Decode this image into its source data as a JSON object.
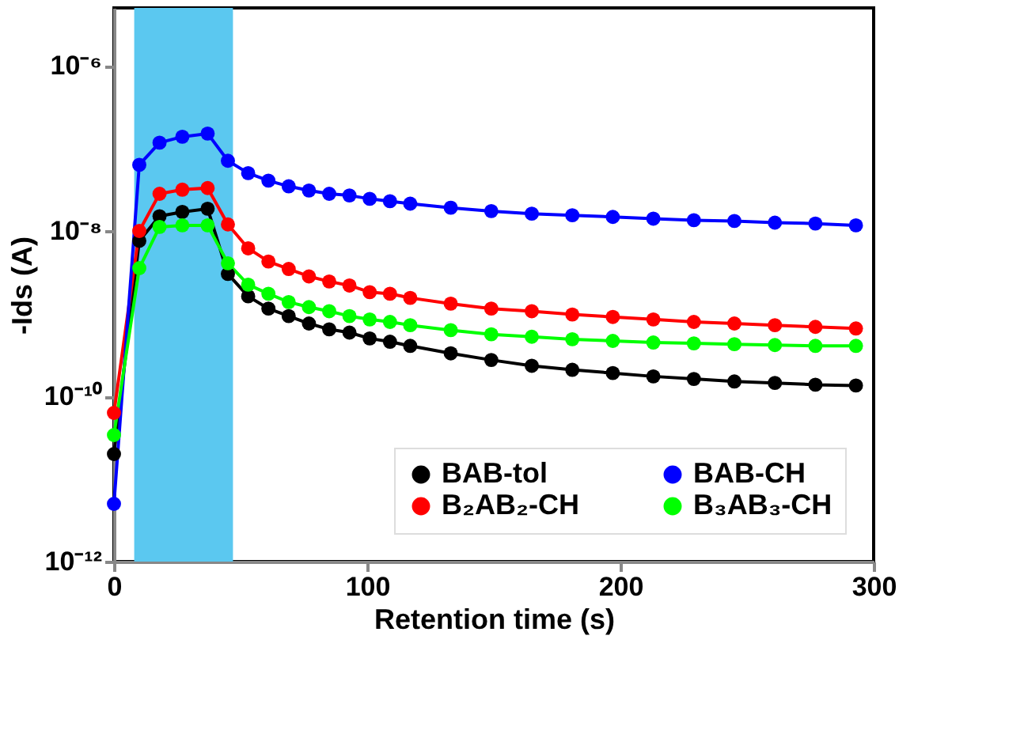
{
  "chart_data": {
    "type": "line",
    "xlabel": "Retention time (s)",
    "ylabel": "-Ids (A)",
    "x": [
      0,
      10,
      18,
      27,
      37,
      45,
      53,
      61,
      69,
      77,
      85,
      93,
      101,
      109,
      117,
      133,
      149,
      165,
      181,
      197,
      213,
      229,
      245,
      261,
      277,
      293
    ],
    "series": [
      {
        "name": "BAB-tol",
        "color": "#000000",
        "values": [
          2e-11,
          7.59e-09,
          1.51e-08,
          1.7e-08,
          1.86e-08,
          3.02e-09,
          1.62e-09,
          1.15e-09,
          9.33e-10,
          7.59e-10,
          6.46e-10,
          5.89e-10,
          5.01e-10,
          4.57e-10,
          4.07e-10,
          3.31e-10,
          2.75e-10,
          2.34e-10,
          2.09e-10,
          1.91e-10,
          1.74e-10,
          1.62e-10,
          1.51e-10,
          1.45e-10,
          1.38e-10,
          1.35e-10
        ]
      },
      {
        "name": "B₂AB₂-CH",
        "color": "#ff0000",
        "values": [
          6.3e-11,
          1e-08,
          2.82e-08,
          3.16e-08,
          3.31e-08,
          1.2e-08,
          6.17e-09,
          4.27e-09,
          3.47e-09,
          2.82e-09,
          2.45e-09,
          2.19e-09,
          1.82e-09,
          1.74e-09,
          1.55e-09,
          1.32e-09,
          1.15e-09,
          1.07e-09,
          9.77e-10,
          9.12e-10,
          8.51e-10,
          7.94e-10,
          7.59e-10,
          7.24e-10,
          6.92e-10,
          6.61e-10
        ]
      },
      {
        "name": "BAB-CH",
        "color": "#0000ff",
        "values": [
          5e-12,
          6.31e-08,
          1.17e-07,
          1.38e-07,
          1.51e-07,
          7.08e-08,
          5.01e-08,
          4.07e-08,
          3.47e-08,
          3.09e-08,
          2.82e-08,
          2.69e-08,
          2.45e-08,
          2.29e-08,
          2.14e-08,
          1.91e-08,
          1.74e-08,
          1.62e-08,
          1.55e-08,
          1.48e-08,
          1.41e-08,
          1.35e-08,
          1.32e-08,
          1.26e-08,
          1.23e-08,
          1.17e-08
        ]
      },
      {
        "name": "B₃AB₃-CH",
        "color": "#00ff00",
        "values": [
          3.4e-11,
          3.55e-09,
          1.12e-08,
          1.17e-08,
          1.17e-08,
          4.07e-09,
          2.24e-09,
          1.74e-09,
          1.38e-09,
          1.2e-09,
          1.07e-09,
          9.33e-10,
          8.51e-10,
          7.94e-10,
          7.24e-10,
          6.31e-10,
          5.62e-10,
          5.25e-10,
          4.9e-10,
          4.68e-10,
          4.47e-10,
          4.37e-10,
          4.27e-10,
          4.17e-10,
          4.07e-10,
          4.07e-10
        ]
      }
    ],
    "xlim": [
      0,
      300
    ],
    "xticks": [
      0,
      100,
      200,
      300
    ],
    "ylim": [
      1e-12,
      5e-06
    ],
    "yticks": [
      {
        "value": 1e-12,
        "label": "10⁻¹²"
      },
      {
        "value": 1e-10,
        "label": "10⁻¹⁰"
      },
      {
        "value": 1e-08,
        "label": "10⁻⁸"
      },
      {
        "value": 1e-06,
        "label": "10⁻⁶"
      }
    ],
    "log": true,
    "grid": false,
    "legend": "bottom right",
    "marker": "circle",
    "line_style": "solid",
    "bands": [
      {
        "axis": "x",
        "from": 8,
        "to": 47,
        "color": "#5bc8f0"
      }
    ]
  }
}
